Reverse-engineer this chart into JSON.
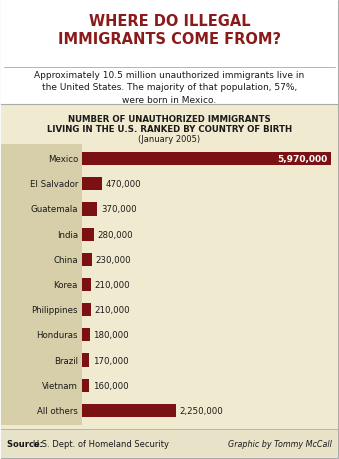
{
  "title_main": "WHERE DO ILLEGAL\nIMMIGRANTS COME FROM?",
  "subtitle": "Approximately 10.5 million unauthorized immigrants live in\nthe United States. The majority of that population, 57%,\nwere born in Mexico.",
  "chart_title_line1": "NUMBER OF UNAUTHORIZED IMMIGRANTS",
  "chart_title_line2": "LIVING IN THE U.S. RANKED BY COUNTRY OF BIRTH",
  "chart_title_line3": "(January 2005)",
  "categories": [
    "Mexico",
    "El Salvador",
    "Guatemala",
    "India",
    "China",
    "Korea",
    "Philippines",
    "Honduras",
    "Brazil",
    "Vietnam",
    "All others"
  ],
  "values": [
    5970000,
    470000,
    370000,
    280000,
    230000,
    210000,
    210000,
    180000,
    170000,
    160000,
    2250000
  ],
  "labels": [
    "5,970,000",
    "470,000",
    "370,000",
    "280,000",
    "230,000",
    "210,000",
    "210,000",
    "180,000",
    "170,000",
    "160,000",
    "2,250,000"
  ],
  "bar_color": "#7b1113",
  "bg_outer": "#ffffff",
  "bg_chart": "#f0ead0",
  "bg_label_area": "#d6cfaa",
  "title_color": "#8b1a1a",
  "text_color": "#1a1a1a",
  "border_color": "#aaaaaa",
  "footer_bg": "#e8e2c8",
  "credit_text": "Graphic by Tommy McCall"
}
